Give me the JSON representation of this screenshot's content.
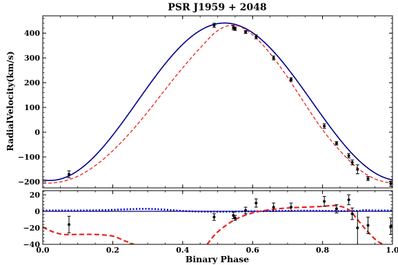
{
  "chart_data": {
    "type": "scatter",
    "title": "PSR J1959 + 2048",
    "xlabel": "Binary Phase",
    "ylabel": "RadialVelocity(km/s)",
    "xlim": [
      0.0,
      1.0
    ],
    "x_ticks": [
      0.0,
      0.2,
      0.4,
      0.6,
      0.8,
      1.0
    ],
    "x_tick_labels": [
      "0.0",
      "0.2",
      "0.4",
      "0.6",
      "0.8",
      "1.0"
    ],
    "colors": {
      "solid": "#000066",
      "dashed": "#e8201a",
      "dotted": "#0000dd",
      "points": "#000000"
    },
    "panels": [
      {
        "id": "top",
        "ylim": [
          -225,
          470
        ],
        "y_ticks": [
          -200,
          -100,
          0,
          100,
          200,
          300,
          400
        ],
        "y_tick_labels": [
          "−200",
          "−100",
          "0",
          "100",
          "200",
          "300",
          "400"
        ],
        "model_solid": {
          "amplitude": 318,
          "offset": 123,
          "peak_phase": 0.52
        },
        "model_dotted": {
          "amplitude": 318,
          "offset": 123,
          "peak_phase": 0.52
        },
        "model_dashed": {
          "x": [
            0.0,
            0.05,
            0.1,
            0.15,
            0.2,
            0.25,
            0.3,
            0.35,
            0.4,
            0.45,
            0.5,
            0.55,
            0.6,
            0.65,
            0.7,
            0.75,
            0.8,
            0.85,
            0.9,
            0.95,
            1.0
          ],
          "y": [
            -207,
            -201,
            -178,
            -135,
            -75,
            -2,
            82,
            172,
            260,
            340,
            410,
            432,
            393,
            318,
            222,
            114,
            10,
            -75,
            -145,
            -189,
            -207
          ]
        },
        "points": [
          {
            "x": 0.075,
            "y": -170,
            "err": 14
          },
          {
            "x": 0.49,
            "y": 432,
            "err": 8
          },
          {
            "x": 0.545,
            "y": 422,
            "err": 8
          },
          {
            "x": 0.55,
            "y": 418,
            "err": 7
          },
          {
            "x": 0.58,
            "y": 405,
            "err": 6
          },
          {
            "x": 0.61,
            "y": 385,
            "err": 8
          },
          {
            "x": 0.66,
            "y": 300,
            "err": 8
          },
          {
            "x": 0.71,
            "y": 213,
            "err": 7
          },
          {
            "x": 0.805,
            "y": 25,
            "err": 9
          },
          {
            "x": 0.84,
            "y": -45,
            "err": 7
          },
          {
            "x": 0.875,
            "y": -95,
            "err": 9
          },
          {
            "x": 0.885,
            "y": -122,
            "err": 10
          },
          {
            "x": 0.9,
            "y": -150,
            "err": 18
          },
          {
            "x": 0.93,
            "y": -187,
            "err": 8
          },
          {
            "x": 0.995,
            "y": -208,
            "err": 10
          }
        ]
      },
      {
        "id": "bottom",
        "ylim": [
          -40,
          25
        ],
        "y_ticks": [
          -40,
          -20,
          0,
          20
        ],
        "y_tick_labels": [
          "−40",
          "−20",
          "0",
          "20"
        ],
        "model_solid": {
          "x": [
            0.0,
            0.05,
            0.1,
            0.15,
            0.2,
            0.25,
            0.3,
            0.35,
            0.4,
            0.45,
            0.5,
            0.55,
            0.6,
            0.65,
            0.7,
            0.75,
            0.8,
            0.85,
            0.9,
            0.95,
            1.0
          ],
          "y": [
            0,
            0,
            0,
            0,
            0,
            0,
            0,
            0,
            0,
            0,
            0,
            0,
            0,
            0,
            0,
            0,
            0,
            0,
            0,
            0,
            0
          ]
        },
        "model_dotted": {
          "x": [
            0.0,
            0.05,
            0.1,
            0.15,
            0.2,
            0.25,
            0.3,
            0.35,
            0.4,
            0.45,
            0.5,
            0.55,
            0.6,
            0.65,
            0.7,
            0.75,
            0.8,
            0.85,
            0.9,
            0.92,
            0.95,
            1.0
          ],
          "y": [
            1,
            1,
            1,
            1.2,
            1.8,
            2.6,
            3.0,
            2.0,
            0.5,
            -0.3,
            -0.5,
            -0.3,
            0,
            0.3,
            0.6,
            0.8,
            0.6,
            0.4,
            0.6,
            1.4,
            1.0,
            1.0
          ]
        },
        "model_dashed": {
          "x": [
            0.0,
            0.03,
            0.06,
            0.1,
            0.15,
            0.2,
            0.23,
            0.26,
            0.28
          ],
          "y": [
            -19,
            -25,
            -28,
            -28,
            -28,
            -30,
            -35,
            -40,
            -44
          ]
        },
        "model_dashed_2": {
          "x": [
            0.47,
            0.5,
            0.55,
            0.6,
            0.65,
            0.7,
            0.75,
            0.8,
            0.83,
            0.86,
            0.88,
            0.9,
            0.93,
            0.96,
            1.0
          ],
          "y": [
            -40,
            -25,
            -10,
            -2,
            2,
            4,
            5,
            6,
            7,
            5,
            0,
            -10,
            -25,
            -37,
            -44
          ]
        },
        "points": [
          {
            "x": 0.075,
            "y": -16,
            "err": 10
          },
          {
            "x": 0.49,
            "y": -7,
            "err": 4
          },
          {
            "x": 0.545,
            "y": -5,
            "err": 4
          },
          {
            "x": 0.55,
            "y": -8,
            "err": 3
          },
          {
            "x": 0.58,
            "y": 1,
            "err": 4
          },
          {
            "x": 0.61,
            "y": 10,
            "err": 5
          },
          {
            "x": 0.66,
            "y": 5,
            "err": 5
          },
          {
            "x": 0.71,
            "y": 5,
            "err": 5
          },
          {
            "x": 0.805,
            "y": 12,
            "err": 6
          },
          {
            "x": 0.84,
            "y": 3,
            "err": 5
          },
          {
            "x": 0.875,
            "y": 14,
            "err": 6
          },
          {
            "x": 0.885,
            "y": -3,
            "err": 7
          },
          {
            "x": 0.9,
            "y": -20,
            "err": 20
          },
          {
            "x": 0.93,
            "y": -17,
            "err": 10
          },
          {
            "x": 0.995,
            "y": -18,
            "err": 10
          }
        ]
      }
    ]
  }
}
